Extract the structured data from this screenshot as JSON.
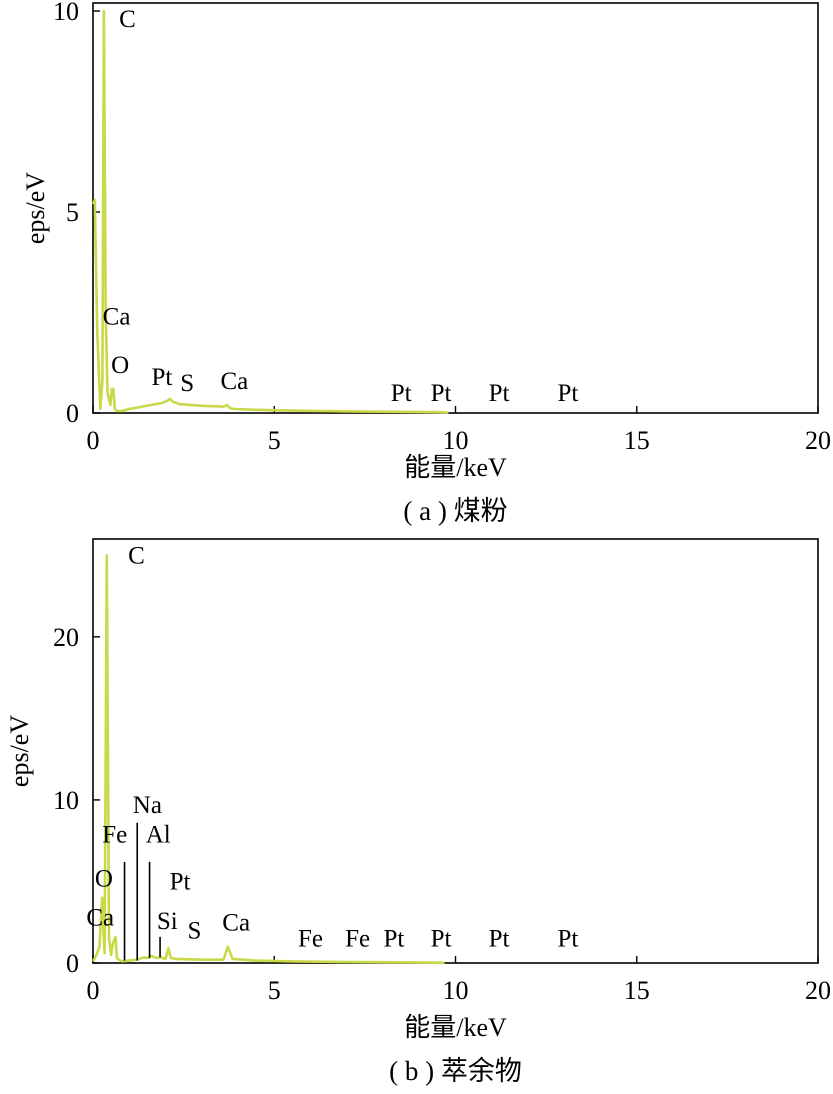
{
  "colors": {
    "spectrum": "#c9d948",
    "axis": "#000000"
  },
  "chart_data": [
    {
      "type": "line",
      "caption": "( a ) 煤粉",
      "xlabel": "能量/keV",
      "ylabel": "eps/eV",
      "xlim": [
        0,
        20
      ],
      "ylim": [
        0,
        10.2
      ],
      "xticks": [
        "0",
        "5",
        "10",
        "15",
        "20"
      ],
      "xtick_values": [
        0,
        5,
        10,
        15,
        20
      ],
      "yticks": [
        "0",
        "5",
        "10"
      ],
      "ytick_values": [
        0,
        5,
        10
      ],
      "grid": false,
      "series": [
        {
          "x": [
            0,
            0.05,
            0.12,
            0.2,
            0.26,
            0.3,
            0.35,
            0.4,
            0.48,
            0.52,
            0.56,
            0.6,
            0.65,
            0.8,
            1.0,
            1.3,
            1.6,
            1.9,
            2.05,
            2.12,
            2.2,
            2.4,
            3.0,
            3.6,
            3.7,
            3.78,
            3.9,
            4.5,
            5.5,
            7.0,
            8.5,
            9.5,
            9.8
          ],
          "y": [
            5.2,
            5.3,
            2.0,
            0.1,
            0.8,
            10.0,
            2.5,
            0.5,
            0.2,
            0.6,
            0.6,
            0.1,
            0.05,
            0.05,
            0.1,
            0.15,
            0.2,
            0.25,
            0.3,
            0.35,
            0.28,
            0.22,
            0.18,
            0.16,
            0.2,
            0.12,
            0.1,
            0.08,
            0.06,
            0.04,
            0.03,
            0.02,
            0.01
          ]
        }
      ],
      "annotations": [
        {
          "text": "C",
          "x": 0.95,
          "y": 9.6
        },
        {
          "text": "Ca",
          "x": 0.65,
          "y": 2.2
        },
        {
          "text": "O",
          "x": 0.75,
          "y": 1.0
        },
        {
          "text": "Pt",
          "x": 1.9,
          "y": 0.7
        },
        {
          "text": "S",
          "x": 2.6,
          "y": 0.55
        },
        {
          "text": "Ca",
          "x": 3.9,
          "y": 0.6
        },
        {
          "text": "Pt",
          "x": 8.5,
          "y": 0.3
        },
        {
          "text": "Pt",
          "x": 9.6,
          "y": 0.3
        },
        {
          "text": "Pt",
          "x": 11.2,
          "y": 0.3
        },
        {
          "text": "Pt",
          "x": 13.1,
          "y": 0.3
        }
      ],
      "markers": []
    },
    {
      "type": "line",
      "caption": "( b ) 萃余物",
      "xlabel": "能量/keV",
      "ylabel": "eps/eV",
      "xlim": [
        0,
        20
      ],
      "ylim": [
        0,
        26
      ],
      "xticks": [
        "0",
        "5",
        "10",
        "15",
        "20"
      ],
      "xtick_values": [
        0,
        5,
        10,
        15,
        20
      ],
      "yticks": [
        "0",
        "10",
        "20"
      ],
      "ytick_values": [
        0,
        10,
        20
      ],
      "grid": false,
      "series": [
        {
          "x": [
            0,
            0.1,
            0.18,
            0.25,
            0.32,
            0.38,
            0.44,
            0.5,
            0.55,
            0.62,
            0.66,
            0.72,
            0.8,
            1.0,
            1.2,
            1.4,
            1.5,
            1.6,
            1.75,
            1.85,
            2.0,
            2.08,
            2.15,
            2.3,
            3.0,
            3.6,
            3.72,
            3.85,
            4.5,
            5.5,
            7.0,
            8.5,
            9.5,
            9.7
          ],
          "y": [
            0.1,
            0.5,
            1.0,
            4.0,
            0.6,
            25.0,
            1.5,
            0.5,
            1.2,
            1.6,
            0.3,
            0.2,
            0.1,
            0.15,
            0.2,
            0.35,
            0.3,
            0.45,
            0.3,
            0.35,
            0.25,
            0.9,
            0.3,
            0.25,
            0.2,
            0.2,
            1.0,
            0.25,
            0.15,
            0.1,
            0.06,
            0.04,
            0.02,
            0.01
          ]
        }
      ],
      "annotations": [
        {
          "text": "C",
          "x": 1.2,
          "y": 24.5
        },
        {
          "text": "Na",
          "x": 1.5,
          "y": 9.2
        },
        {
          "text": "Fe",
          "x": 0.6,
          "y": 7.4
        },
        {
          "text": "Al",
          "x": 1.8,
          "y": 7.4
        },
        {
          "text": "O",
          "x": 0.3,
          "y": 4.7
        },
        {
          "text": "Pt",
          "x": 2.4,
          "y": 4.5
        },
        {
          "text": "Ca",
          "x": 0.2,
          "y": 2.3
        },
        {
          "text": "Si",
          "x": 2.05,
          "y": 2.1
        },
        {
          "text": "S",
          "x": 2.8,
          "y": 1.5
        },
        {
          "text": "Ca",
          "x": 3.95,
          "y": 2.0
        },
        {
          "text": "Fe",
          "x": 6.0,
          "y": 1.0
        },
        {
          "text": "Fe",
          "x": 7.3,
          "y": 1.0
        },
        {
          "text": "Pt",
          "x": 8.3,
          "y": 1.0
        },
        {
          "text": "Pt",
          "x": 9.6,
          "y": 1.0
        },
        {
          "text": "Pt",
          "x": 11.2,
          "y": 1.0
        },
        {
          "text": "Pt",
          "x": 13.1,
          "y": 1.0
        }
      ],
      "markers": [
        {
          "x": 0.87,
          "y1": 0.15,
          "y2": 6.2
        },
        {
          "x": 1.22,
          "y1": 0.15,
          "y2": 8.6
        },
        {
          "x": 1.56,
          "y1": 0.3,
          "y2": 6.2
        },
        {
          "x": 1.85,
          "y1": 0.35,
          "y2": 1.6
        }
      ]
    }
  ]
}
